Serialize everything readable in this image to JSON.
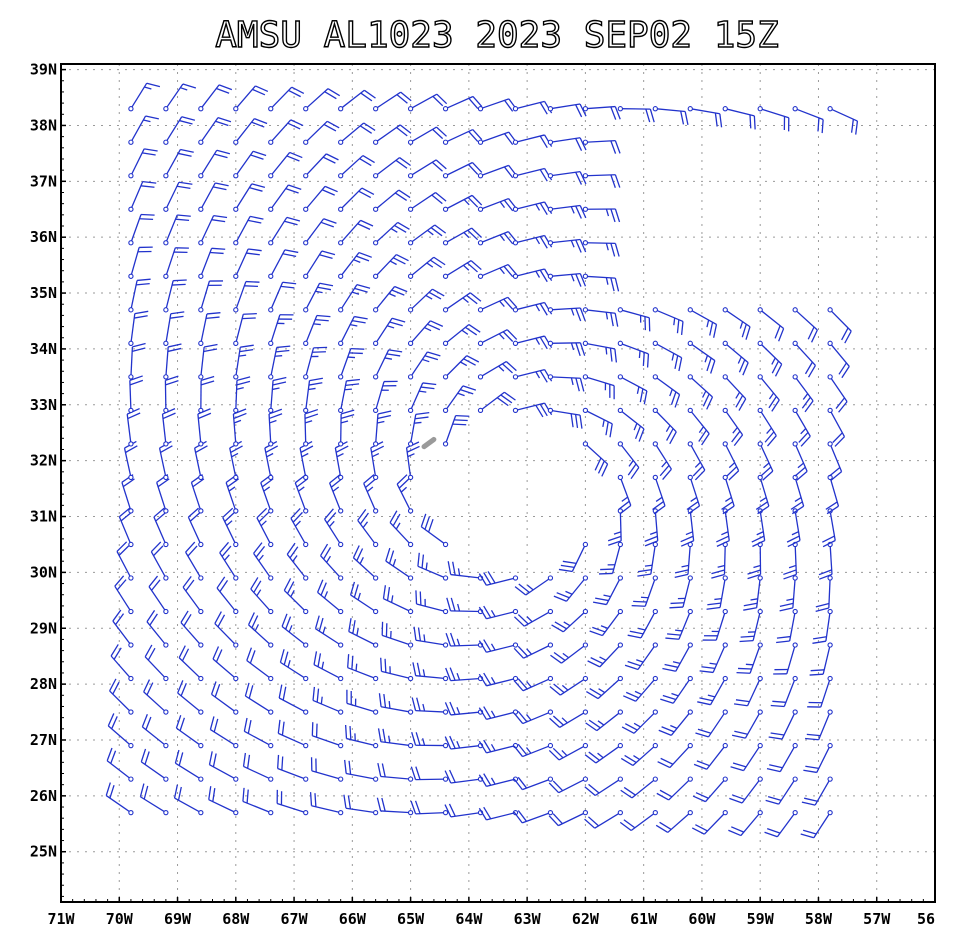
{
  "title": "AMSU AL1023 2023 SEP02 15Z",
  "colors": {
    "barb": "#2233cc",
    "frame": "#000000",
    "grid": "#9a9a9a",
    "center_mark": "#9a9a9a"
  },
  "chart_data": {
    "type": "wind-barb",
    "title": "AMSU AL1023 2023 SEP02 15Z",
    "xlim": [
      -71,
      -56
    ],
    "ylim": [
      24.1,
      39.1
    ],
    "grid": true,
    "xticks": [
      -71,
      -70,
      -69,
      -68,
      -67,
      -66,
      -65,
      -64,
      -63,
      -62,
      -61,
      -60,
      -59,
      -58,
      -57,
      -56
    ],
    "xtick_labels": [
      "71W",
      "70W",
      "69W",
      "68W",
      "67W",
      "66W",
      "65W",
      "64W",
      "63W",
      "62W",
      "61W",
      "60W",
      "59W",
      "58W",
      "57W",
      "56"
    ],
    "yticks": [
      25,
      26,
      27,
      28,
      29,
      30,
      31,
      32,
      33,
      34,
      35,
      36,
      37,
      38,
      39
    ],
    "ytick_labels": [
      "25N",
      "26N",
      "27N",
      "28N",
      "29N",
      "30N",
      "31N",
      "32N",
      "33N",
      "34N",
      "35N",
      "36N",
      "37N",
      "38N",
      "39N"
    ],
    "barb_grid": {
      "lon_range": [
        -69.8,
        -57.8
      ],
      "lon_step": 0.6,
      "lat_range": [
        25.7,
        38.3
      ],
      "lat_step": 0.6
    },
    "vortex_center": {
      "lon": -63.2,
      "lat": 31.5,
      "radius_deg": 1.3
    },
    "void_box": {
      "lon": [
        -61.8,
        -57.8
      ],
      "lat": [
        35.1,
        38.0
      ]
    },
    "max_speed_kt": 30
  }
}
